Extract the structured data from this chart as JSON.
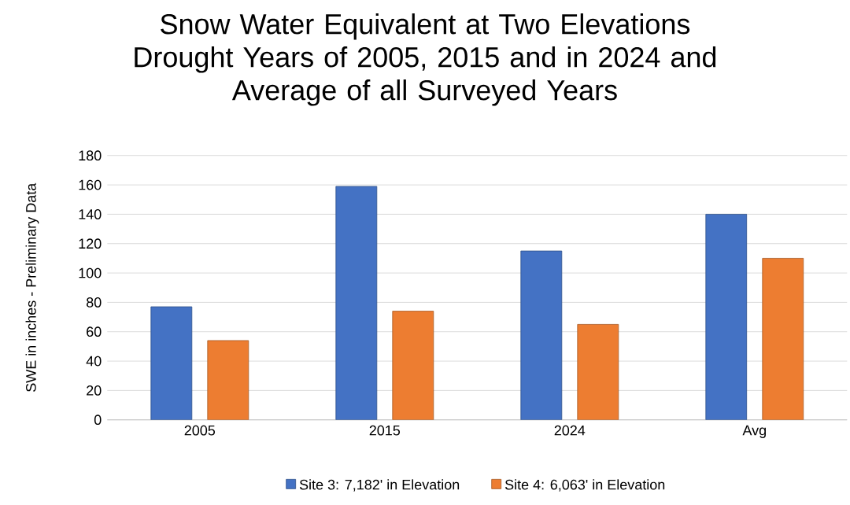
{
  "chart_data": {
    "type": "bar",
    "title": "Snow Water Equivalent at Two Elevations\nDrought Years of 2005, 2015 and in 2024 and\nAverage of all Surveyed Years",
    "ylabel": "SWE in inches - Preliminary Data",
    "categories": [
      "2005",
      "2015",
      "2024",
      "Avg"
    ],
    "series": [
      {
        "name": "Site 3: 7,182' in Elevation",
        "color": "#4472c4",
        "values": [
          77,
          159,
          115,
          140
        ]
      },
      {
        "name": "Site 4: 6,063' in Elevation",
        "color": "#ed7d31",
        "values": [
          54,
          74,
          65,
          110
        ]
      }
    ],
    "ylim": [
      0,
      180
    ],
    "yticks": [
      0,
      20,
      40,
      60,
      80,
      100,
      120,
      140,
      160,
      180
    ],
    "grid": "y",
    "legend": "bottom"
  }
}
